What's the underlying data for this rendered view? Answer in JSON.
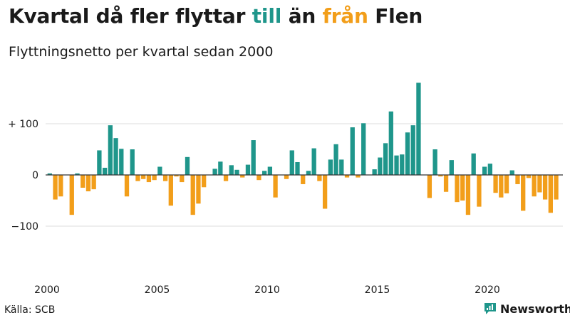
{
  "header": {
    "title_prefix": "Kvartal då fler flyttar ",
    "title_in": "till",
    "title_mid": " än ",
    "title_out": "från",
    "title_suffix": " Flen",
    "subtitle": "Flyttningsnetto per kvartal sedan 2000"
  },
  "footer": {
    "source": "Källa: SCB",
    "brand": "Newsworthy"
  },
  "colors": {
    "positive": "#1f968b",
    "negative": "#f29e1a",
    "grid": "#dddddd",
    "zero_line": "#333333",
    "text": "#1a1a1a"
  },
  "chart_data": {
    "type": "bar",
    "title": "Kvartal då fler flyttar till än från Flen",
    "subtitle": "Flyttningsnetto per kvartal sedan 2000",
    "xlabel": "",
    "ylabel": "Flyttningsnetto",
    "ylim": [
      -150,
      180
    ],
    "x_start": 2000,
    "y_ticks": [
      100,
      0,
      -100
    ],
    "y_tick_labels": [
      "+ 100",
      "0",
      "−100"
    ],
    "x_ticks": [
      2000,
      2005,
      2010,
      2015,
      2020
    ],
    "x_tick_labels": [
      "2000",
      "2005",
      "2010",
      "2015",
      "2020"
    ],
    "grid": true,
    "values": [
      3,
      -48,
      -42,
      0,
      -78,
      3,
      -25,
      -32,
      -28,
      48,
      14,
      97,
      72,
      51,
      -42,
      50,
      -12,
      -8,
      -14,
      -10,
      16,
      -12,
      -60,
      -3,
      -14,
      35,
      -78,
      -56,
      -24,
      0,
      12,
      26,
      -12,
      19,
      10,
      -5,
      20,
      68,
      -10,
      8,
      16,
      -44,
      0,
      -8,
      48,
      25,
      -18,
      8,
      52,
      -12,
      -66,
      30,
      60,
      30,
      -5,
      93,
      -5,
      101,
      0,
      11,
      34,
      62,
      124,
      38,
      40,
      83,
      97,
      180,
      0,
      -45,
      50,
      -3,
      -33,
      29,
      -53,
      -50,
      -78,
      42,
      -62,
      16,
      22,
      -35,
      -44,
      -36,
      9,
      -18,
      -70,
      -6,
      -42,
      -34,
      -48,
      -74,
      -48
    ]
  }
}
